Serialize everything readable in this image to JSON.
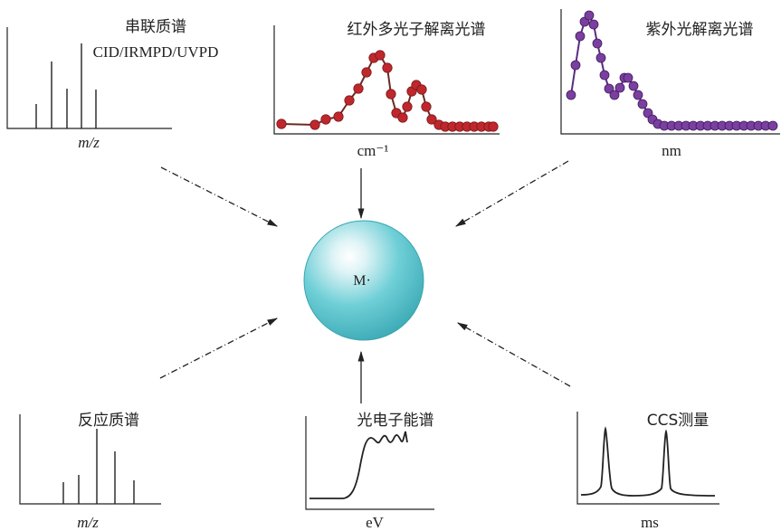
{
  "center": {
    "label": "M·",
    "color": "#5bc6cf"
  },
  "panels": {
    "tandem_ms": {
      "title": "串联质谱",
      "subtitle": "CID/IRMPD/UVPD",
      "xlabel": "m/z"
    },
    "ir_spectrum": {
      "title": "红外多光子解离光谱",
      "xlabel": "cm⁻¹",
      "color": "#c0272d"
    },
    "uv_spectrum": {
      "title": "紫外光解离光谱",
      "xlabel": "nm",
      "color": "#7b3fa0"
    },
    "reaction_ms": {
      "title": "反应质谱",
      "xlabel": "m/z"
    },
    "pes": {
      "title": "光电子能谱",
      "xlabel": "eV"
    },
    "ccs": {
      "title": "CCS测量",
      "xlabel": "ms"
    }
  }
}
